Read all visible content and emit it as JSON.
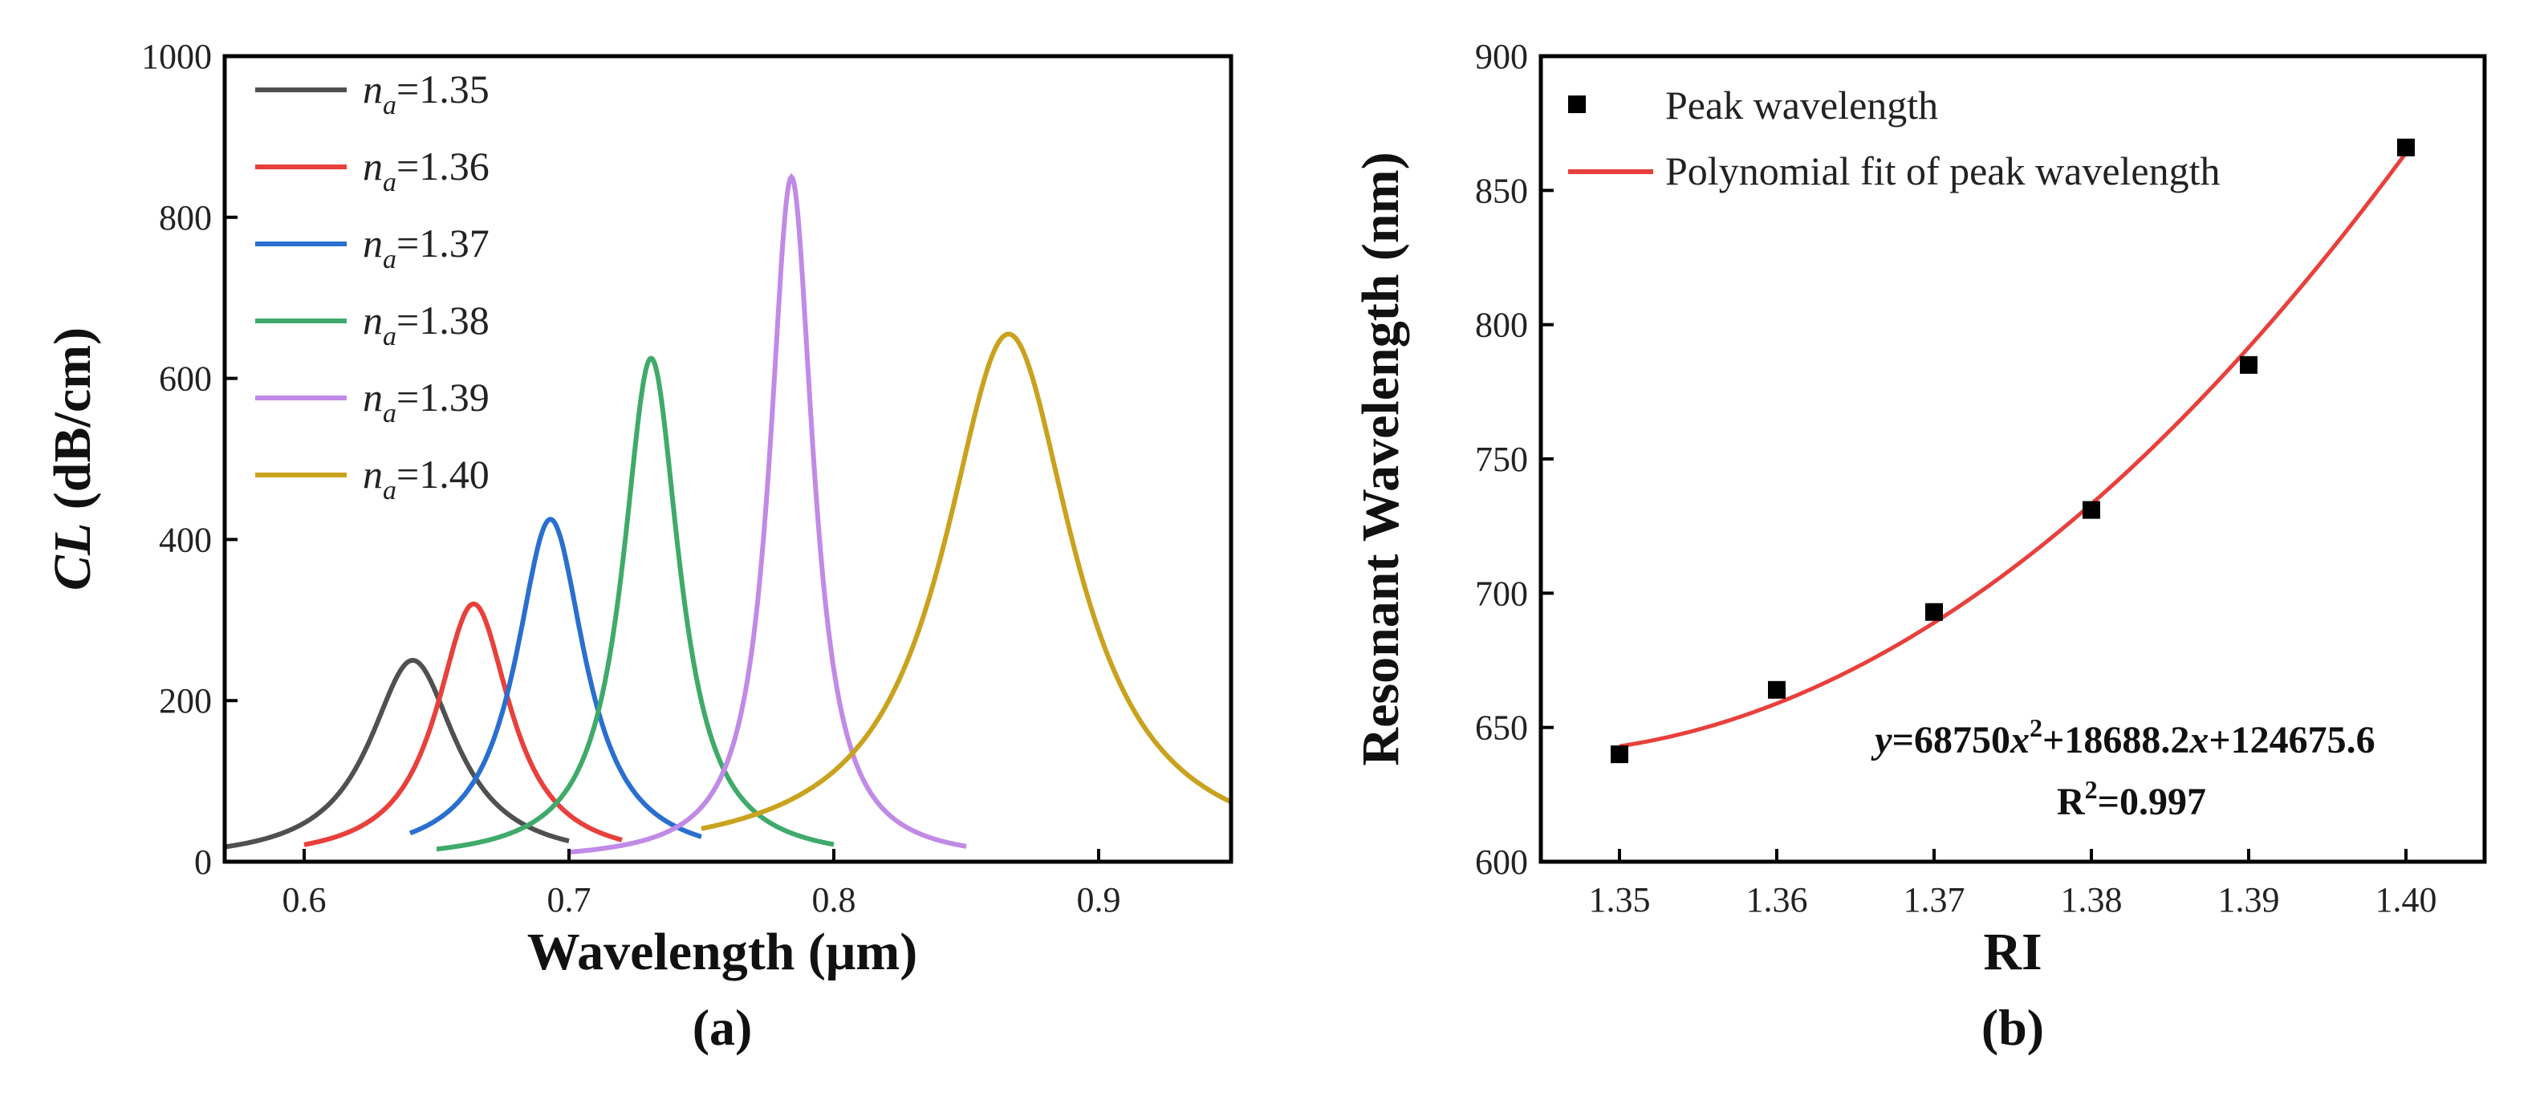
{
  "chart_data": [
    {
      "panel": "a",
      "type": "line",
      "caption": "(a)",
      "ylabel_italic": "CL",
      "ylabel_rest": " (dB/cm)",
      "xlabel": "Wavelength (μm)",
      "xlim": [
        0.57,
        0.95
      ],
      "ylim": [
        0,
        1000
      ],
      "xticks": [
        0.6,
        0.7,
        0.8,
        0.9
      ],
      "xtick_labels": [
        "0.6",
        "0.7",
        "0.8",
        "0.9"
      ],
      "yticks": [
        0,
        200,
        400,
        600,
        800,
        1000
      ],
      "ytick_labels": [
        "0",
        "200",
        "400",
        "600",
        "800",
        "1000"
      ],
      "legend_position": "top-left",
      "series": [
        {
          "name_italic": "n",
          "name_sub": "a",
          "name_rest": "=1.35",
          "color": "#505050",
          "peak_x": 0.641,
          "peak_y": 250,
          "x_start": 0.57,
          "x_end": 0.7,
          "width": 0.02
        },
        {
          "name_italic": "n",
          "name_sub": "a",
          "name_rest": "=1.36",
          "color": "#e8403c",
          "peak_x": 0.664,
          "peak_y": 320,
          "x_start": 0.6,
          "x_end": 0.72,
          "width": 0.017
        },
        {
          "name_italic": "n",
          "name_sub": "a",
          "name_rest": "=1.37",
          "color": "#2a6fd0",
          "peak_x": 0.693,
          "peak_y": 425,
          "x_start": 0.64,
          "x_end": 0.75,
          "width": 0.016
        },
        {
          "name_italic": "n",
          "name_sub": "a",
          "name_rest": "=1.38",
          "color": "#3faa6a",
          "peak_x": 0.731,
          "peak_y": 625,
          "x_start": 0.65,
          "x_end": 0.8,
          "width": 0.013
        },
        {
          "name_italic": "n",
          "name_sub": "a",
          "name_rest": "=1.39",
          "color": "#c08ae6",
          "peak_x": 0.784,
          "peak_y": 850,
          "x_start": 0.7,
          "x_end": 0.85,
          "width": 0.01
        },
        {
          "name_italic": "n",
          "name_sub": "a",
          "name_rest": "=1.40",
          "color": "#c9a21e",
          "peak_x": 0.866,
          "peak_y": 655,
          "x_start": 0.75,
          "x_end": 0.95,
          "width": 0.03
        }
      ]
    },
    {
      "panel": "b",
      "type": "scatter",
      "caption": "(b)",
      "xlabel": "RI",
      "ylabel": "Resonant Wavelength (nm)",
      "xlim": [
        1.345,
        1.405
      ],
      "ylim": [
        600,
        900
      ],
      "xticks": [
        1.35,
        1.36,
        1.37,
        1.38,
        1.39,
        1.4
      ],
      "xtick_labels": [
        "1.35",
        "1.36",
        "1.37",
        "1.38",
        "1.39",
        "1.40"
      ],
      "yticks": [
        600,
        650,
        700,
        750,
        800,
        850,
        900
      ],
      "ytick_labels": [
        "600",
        "650",
        "700",
        "750",
        "800",
        "850",
        "900"
      ],
      "legend_position": "top-left",
      "points": {
        "name": "Peak wavelength",
        "color": "#000000",
        "x": [
          1.35,
          1.36,
          1.37,
          1.38,
          1.39,
          1.4
        ],
        "y": [
          640,
          664,
          693,
          731,
          785,
          866
        ]
      },
      "fit": {
        "name": "Polynomial fit of peak wavelength",
        "color": "#e8403c",
        "y_values": [
          643,
          662,
          689,
          729,
          785,
          864
        ]
      },
      "equation": {
        "y": "y",
        "eq": "=68750",
        "x1": "x",
        "sup": "2",
        "mid": "+18688.2",
        "x2": "x",
        "tail": "+124675.6"
      },
      "r2": {
        "R": "R",
        "sup": "2",
        "rest": "=0.997"
      }
    }
  ]
}
